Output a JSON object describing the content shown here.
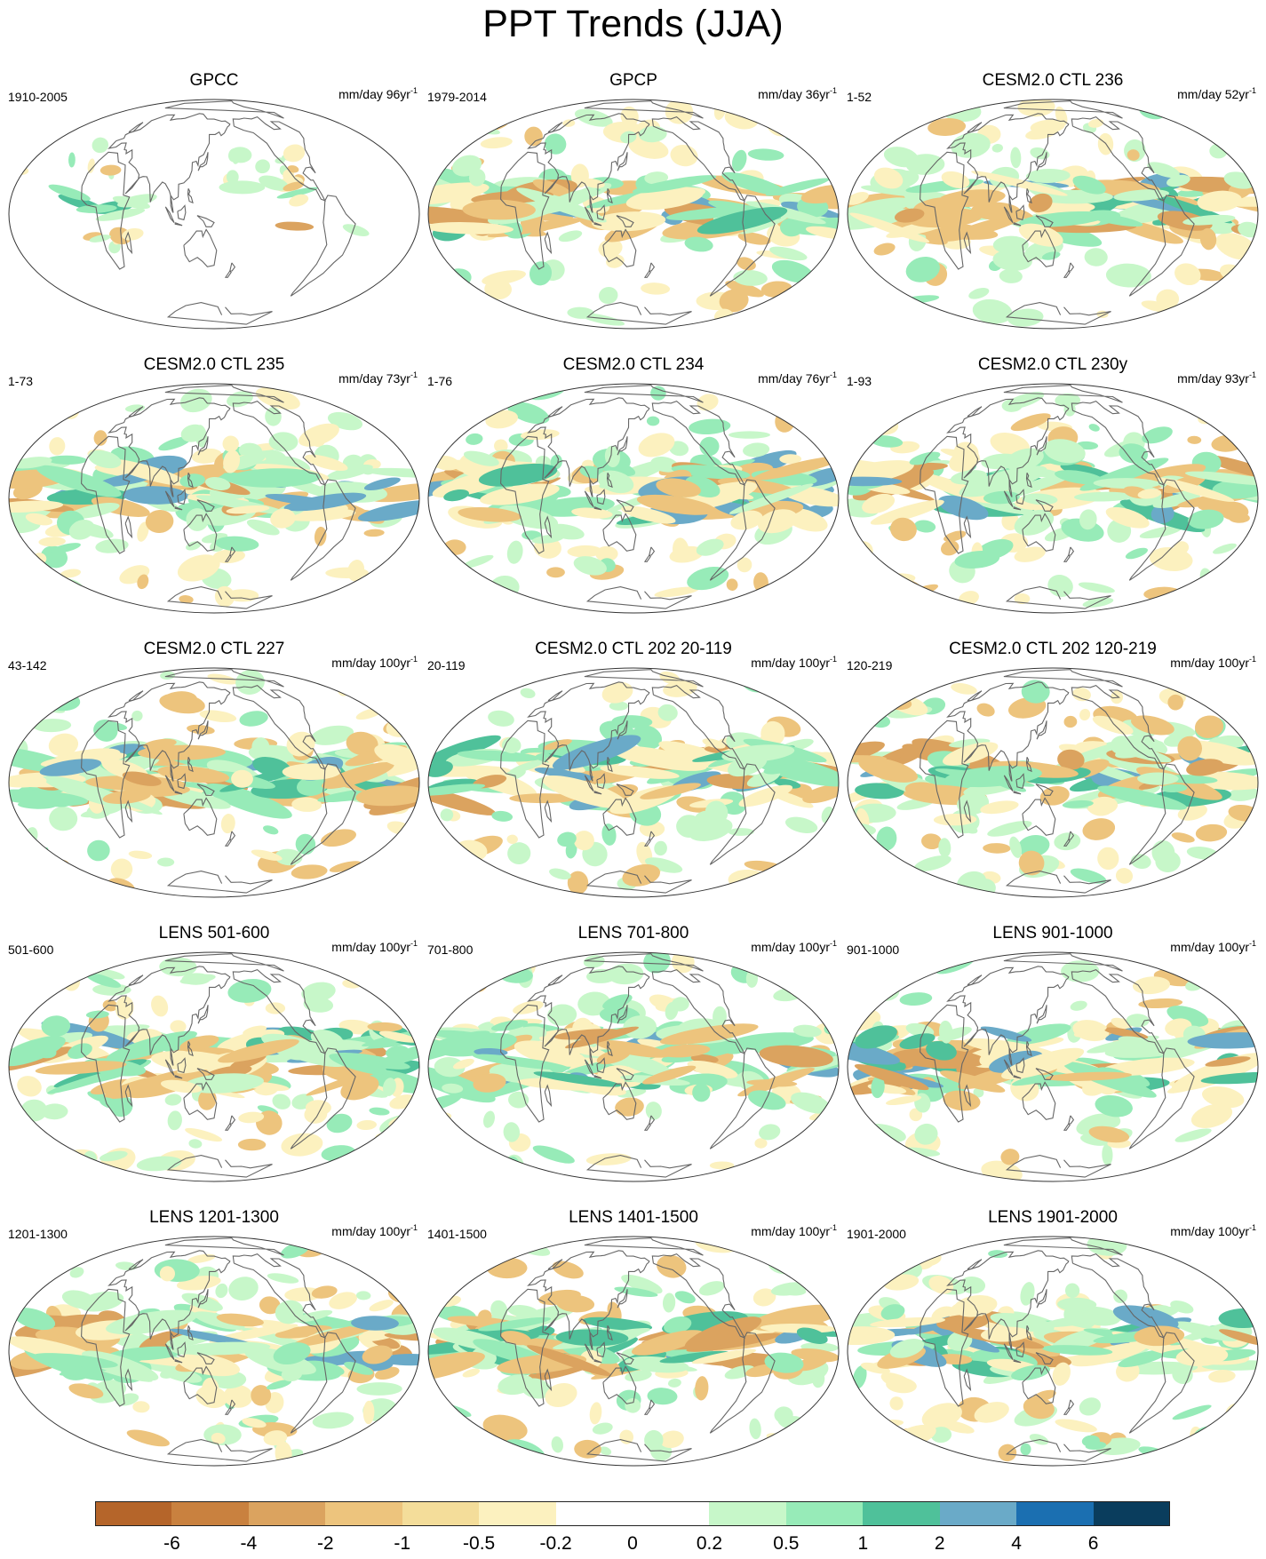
{
  "title": "PPT Trends (JJA)",
  "panels": [
    {
      "title": "GPCC",
      "left": "1910-2005",
      "right": "mm/day 96yr",
      "sup": "-1"
    },
    {
      "title": "GPCP",
      "left": "1979-2014",
      "right": "mm/day 36yr",
      "sup": "-1"
    },
    {
      "title": "CESM2.0 CTL 236",
      "left": "1-52",
      "right": "mm/day 52yr",
      "sup": "-1"
    },
    {
      "title": "CESM2.0 CTL 235",
      "left": "1-73",
      "right": "mm/day 73yr",
      "sup": "-1"
    },
    {
      "title": "CESM2.0 CTL 234",
      "left": "1-76",
      "right": "mm/day 76yr",
      "sup": "-1"
    },
    {
      "title": "CESM2.0 CTL 230y",
      "left": "1-93",
      "right": "mm/day 93yr",
      "sup": "-1"
    },
    {
      "title": "CESM2.0 CTL 227",
      "left": "43-142",
      "right": "mm/day 100yr",
      "sup": "-1"
    },
    {
      "title": "CESM2.0 CTL 202 20-119",
      "left": "20-119",
      "right": "mm/day 100yr",
      "sup": "-1"
    },
    {
      "title": "CESM2.0 CTL 202 120-219",
      "left": "120-219",
      "right": "mm/day 100yr",
      "sup": "-1"
    },
    {
      "title": "LENS 501-600",
      "left": "501-600",
      "right": "mm/day 100yr",
      "sup": "-1"
    },
    {
      "title": "LENS 701-800",
      "left": "701-800",
      "right": "mm/day 100yr",
      "sup": "-1"
    },
    {
      "title": "LENS 901-1000",
      "left": "901-1000",
      "right": "mm/day 100yr",
      "sup": "-1"
    },
    {
      "title": "LENS 1201-1300",
      "left": "1201-1300",
      "right": "mm/day 100yr",
      "sup": "-1"
    },
    {
      "title": "LENS 1401-1500",
      "left": "1401-1500",
      "right": "mm/day 100yr",
      "sup": "-1"
    },
    {
      "title": "LENS 1901-2000",
      "left": "1901-2000",
      "right": "mm/day 100yr",
      "sup": "-1"
    }
  ],
  "colorbar": {
    "colors": [
      "#b5652a",
      "#c9813f",
      "#dba35f",
      "#edc47d",
      "#f4dd9a",
      "#fcf1bf",
      "#ffffff",
      "#ffffff",
      "#c7f7c9",
      "#97ebb8",
      "#4fc19a",
      "#6aaac8",
      "#1b6fb1",
      "#0a3d5d"
    ],
    "labels": [
      "-6",
      "-4",
      "-2",
      "-1",
      "-0.5",
      "-0.2",
      "0",
      "0.2",
      "0.5",
      "1",
      "2",
      "4",
      "6"
    ]
  },
  "palette": {
    "dry_strong": "#dba35f",
    "dry": "#edc47d",
    "dry_weak": "#fcf1bf",
    "wet_weak": "#c7f7c9",
    "wet": "#97ebb8",
    "wet_strong": "#4fc19a",
    "wet_very": "#6aaac8",
    "coast": "#666666",
    "frame": "#333333"
  }
}
